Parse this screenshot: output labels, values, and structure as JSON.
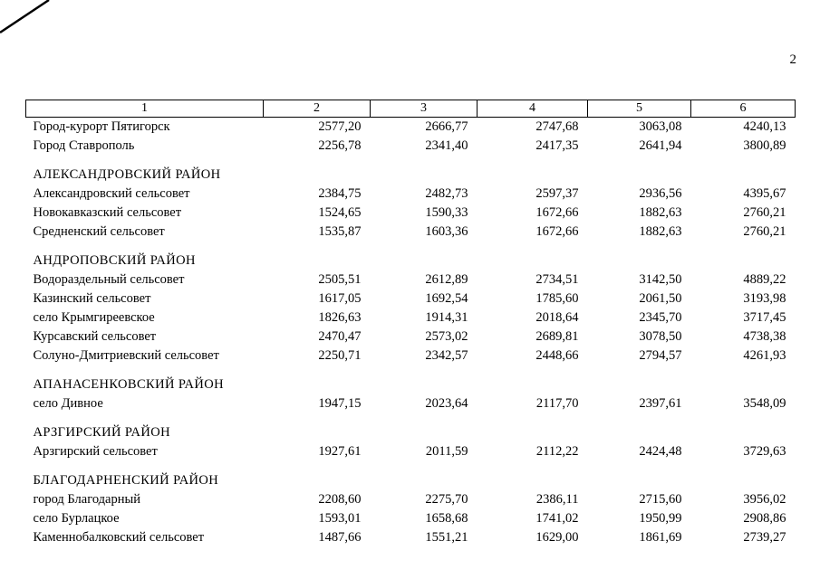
{
  "page": {
    "number": "2"
  },
  "table": {
    "header": [
      "1",
      "2",
      "3",
      "4",
      "5",
      "6"
    ],
    "rows": [
      {
        "type": "data",
        "name": "Город-курорт Пятигорск",
        "values": [
          "2577,20",
          "2666,77",
          "2747,68",
          "3063,08",
          "4240,13"
        ]
      },
      {
        "type": "data",
        "name": "Город Ставрополь",
        "values": [
          "2256,78",
          "2341,40",
          "2417,35",
          "2641,94",
          "3800,89"
        ]
      },
      {
        "type": "spacer"
      },
      {
        "type": "section",
        "name": "АЛЕКСАНДРОВСКИЙ РАЙОН"
      },
      {
        "type": "data",
        "name": "Александровский сельсовет",
        "values": [
          "2384,75",
          "2482,73",
          "2597,37",
          "2936,56",
          "4395,67"
        ]
      },
      {
        "type": "data",
        "name": "Новокавказский сельсовет",
        "values": [
          "1524,65",
          "1590,33",
          "1672,66",
          "1882,63",
          "2760,21"
        ]
      },
      {
        "type": "data",
        "name": "Средненский сельсовет",
        "values": [
          "1535,87",
          "1603,36",
          "1672,66",
          "1882,63",
          "2760,21"
        ]
      },
      {
        "type": "spacer"
      },
      {
        "type": "section",
        "name": "АНДРОПОВСКИЙ РАЙОН"
      },
      {
        "type": "data",
        "name": "Водораздельный сельсовет",
        "values": [
          "2505,51",
          "2612,89",
          "2734,51",
          "3142,50",
          "4889,22"
        ]
      },
      {
        "type": "data",
        "name": "Казинский сельсовет",
        "values": [
          "1617,05",
          "1692,54",
          "1785,60",
          "2061,50",
          "3193,98"
        ]
      },
      {
        "type": "data",
        "name": "село Крымгиреевское",
        "values": [
          "1826,63",
          "1914,31",
          "2018,64",
          "2345,70",
          "3717,45"
        ]
      },
      {
        "type": "data",
        "name": "Курсавский сельсовет",
        "values": [
          "2470,47",
          "2573,02",
          "2689,81",
          "3078,50",
          "4738,38"
        ]
      },
      {
        "type": "data",
        "name": "Солуно-Дмитриевский сельсовет",
        "values": [
          "2250,71",
          "2342,57",
          "2448,66",
          "2794,57",
          "4261,93"
        ]
      },
      {
        "type": "spacer"
      },
      {
        "type": "section",
        "name": "АПАНАСЕНКОВСКИЙ РАЙОН"
      },
      {
        "type": "data",
        "name": "село Дивное",
        "values": [
          "1947,15",
          "2023,64",
          "2117,70",
          "2397,61",
          "3548,09"
        ]
      },
      {
        "type": "spacer"
      },
      {
        "type": "section",
        "name": "АРЗГИРСКИЙ РАЙОН"
      },
      {
        "type": "data",
        "name": "Арзгирский сельсовет",
        "values": [
          "1927,61",
          "2011,59",
          "2112,22",
          "2424,48",
          "3729,63"
        ]
      },
      {
        "type": "spacer"
      },
      {
        "type": "section",
        "name": "БЛАГОДАРНЕНСКИЙ РАЙОН"
      },
      {
        "type": "data",
        "name": "город Благодарный",
        "values": [
          "2208,60",
          "2275,70",
          "2386,11",
          "2715,60",
          "3956,02"
        ]
      },
      {
        "type": "data",
        "name": "село Бурлацкое",
        "values": [
          "1593,01",
          "1658,68",
          "1741,02",
          "1950,99",
          "2908,86"
        ]
      },
      {
        "type": "data",
        "name": "Каменнобалковский сельсовет",
        "values": [
          "1487,66",
          "1551,21",
          "1629,00",
          "1861,69",
          "2739,27"
        ]
      }
    ]
  }
}
